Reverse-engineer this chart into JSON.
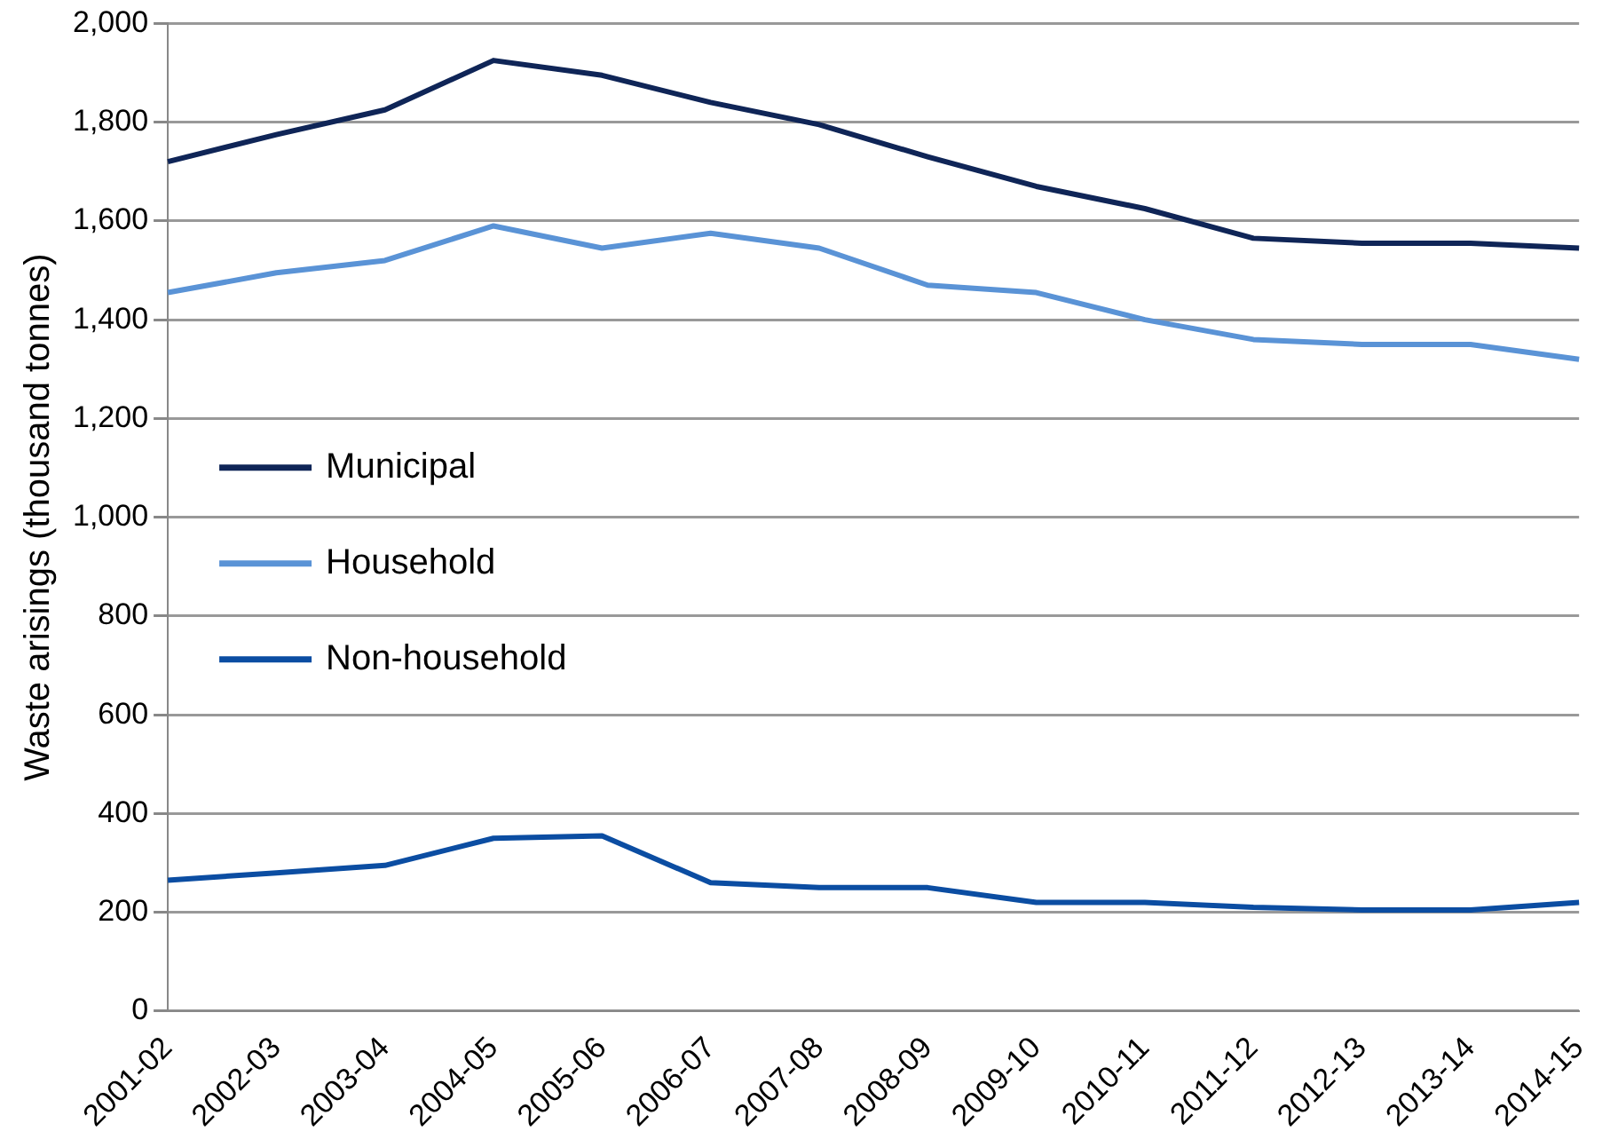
{
  "chart_data": {
    "type": "line",
    "ylabel": "Waste arisings (thousand tonnes)",
    "categories": [
      "2001-02",
      "2002-03",
      "2003-04",
      "2004-05",
      "2005-06",
      "2006-07",
      "2007-08",
      "2008-09",
      "2009-10",
      "2010-11",
      "2011-12",
      "2012-13",
      "2013-14",
      "2014-15"
    ],
    "series": [
      {
        "name": "Municipal",
        "color": "#0f2557",
        "values": [
          1720,
          1775,
          1825,
          1925,
          1895,
          1840,
          1795,
          1730,
          1670,
          1625,
          1565,
          1555,
          1555,
          1545
        ]
      },
      {
        "name": "Household",
        "color": "#5a93d6",
        "values": [
          1455,
          1495,
          1520,
          1590,
          1545,
          1575,
          1545,
          1470,
          1455,
          1400,
          1360,
          1350,
          1350,
          1320
        ]
      },
      {
        "name": "Non-household",
        "color": "#0b4da2",
        "values": [
          265,
          280,
          295,
          350,
          355,
          260,
          250,
          250,
          220,
          220,
          210,
          205,
          205,
          220
        ]
      }
    ],
    "ylim": [
      0,
      2000
    ],
    "yticks": [
      {
        "value": 0,
        "label": "0"
      },
      {
        "value": 200,
        "label": "200"
      },
      {
        "value": 400,
        "label": "400"
      },
      {
        "value": 600,
        "label": "600"
      },
      {
        "value": 800,
        "label": "800"
      },
      {
        "value": 1000,
        "label": "1,000"
      },
      {
        "value": 1200,
        "label": "1,200"
      },
      {
        "value": 1400,
        "label": "1,400"
      },
      {
        "value": 1600,
        "label": "1,600"
      },
      {
        "value": 1800,
        "label": "1,800"
      },
      {
        "value": 2000,
        "label": "2,000"
      }
    ],
    "grid": "y",
    "legend": "left",
    "marker": "none",
    "line_style": "solid"
  }
}
